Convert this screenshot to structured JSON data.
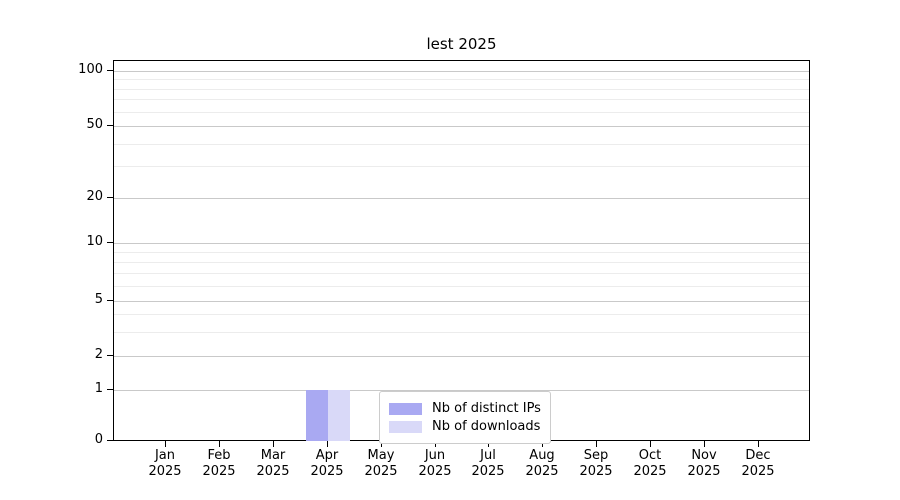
{
  "chart_data": {
    "type": "bar",
    "title": "lest 2025",
    "categories": [
      {
        "month": "Jan",
        "year": "2025"
      },
      {
        "month": "Feb",
        "year": "2025"
      },
      {
        "month": "Mar",
        "year": "2025"
      },
      {
        "month": "Apr",
        "year": "2025"
      },
      {
        "month": "May",
        "year": "2025"
      },
      {
        "month": "Jun",
        "year": "2025"
      },
      {
        "month": "Jul",
        "year": "2025"
      },
      {
        "month": "Aug",
        "year": "2025"
      },
      {
        "month": "Sep",
        "year": "2025"
      },
      {
        "month": "Oct",
        "year": "2025"
      },
      {
        "month": "Nov",
        "year": "2025"
      },
      {
        "month": "Dec",
        "year": "2025"
      }
    ],
    "series": [
      {
        "name": "Nb of distinct IPs",
        "color": "#a9a9f2",
        "values": [
          0,
          0,
          0,
          1,
          0,
          0,
          0,
          0,
          0,
          0,
          0,
          0
        ]
      },
      {
        "name": "Nb of downloads",
        "color": "#d9d9f8",
        "values": [
          0,
          0,
          0,
          1,
          0,
          0,
          0,
          0,
          0,
          0,
          0,
          0
        ]
      }
    ],
    "y_axis": {
      "scale": "symlog",
      "ylim": [
        0,
        100
      ],
      "major_ticks": [
        0,
        1,
        2,
        5,
        10,
        20,
        50,
        100
      ],
      "minor_gridline_values": [
        3,
        4,
        6,
        7,
        8,
        9,
        30,
        40,
        60,
        70,
        80,
        90
      ]
    },
    "legend": {
      "position": "lower center",
      "entries": [
        "Nb of distinct IPs",
        "Nb of downloads"
      ]
    },
    "grid": "horizontal",
    "colors": {
      "major_grid": "#c9c9c9",
      "minor_grid": "#ececec",
      "axis": "#000000",
      "background": "#ffffff"
    }
  }
}
